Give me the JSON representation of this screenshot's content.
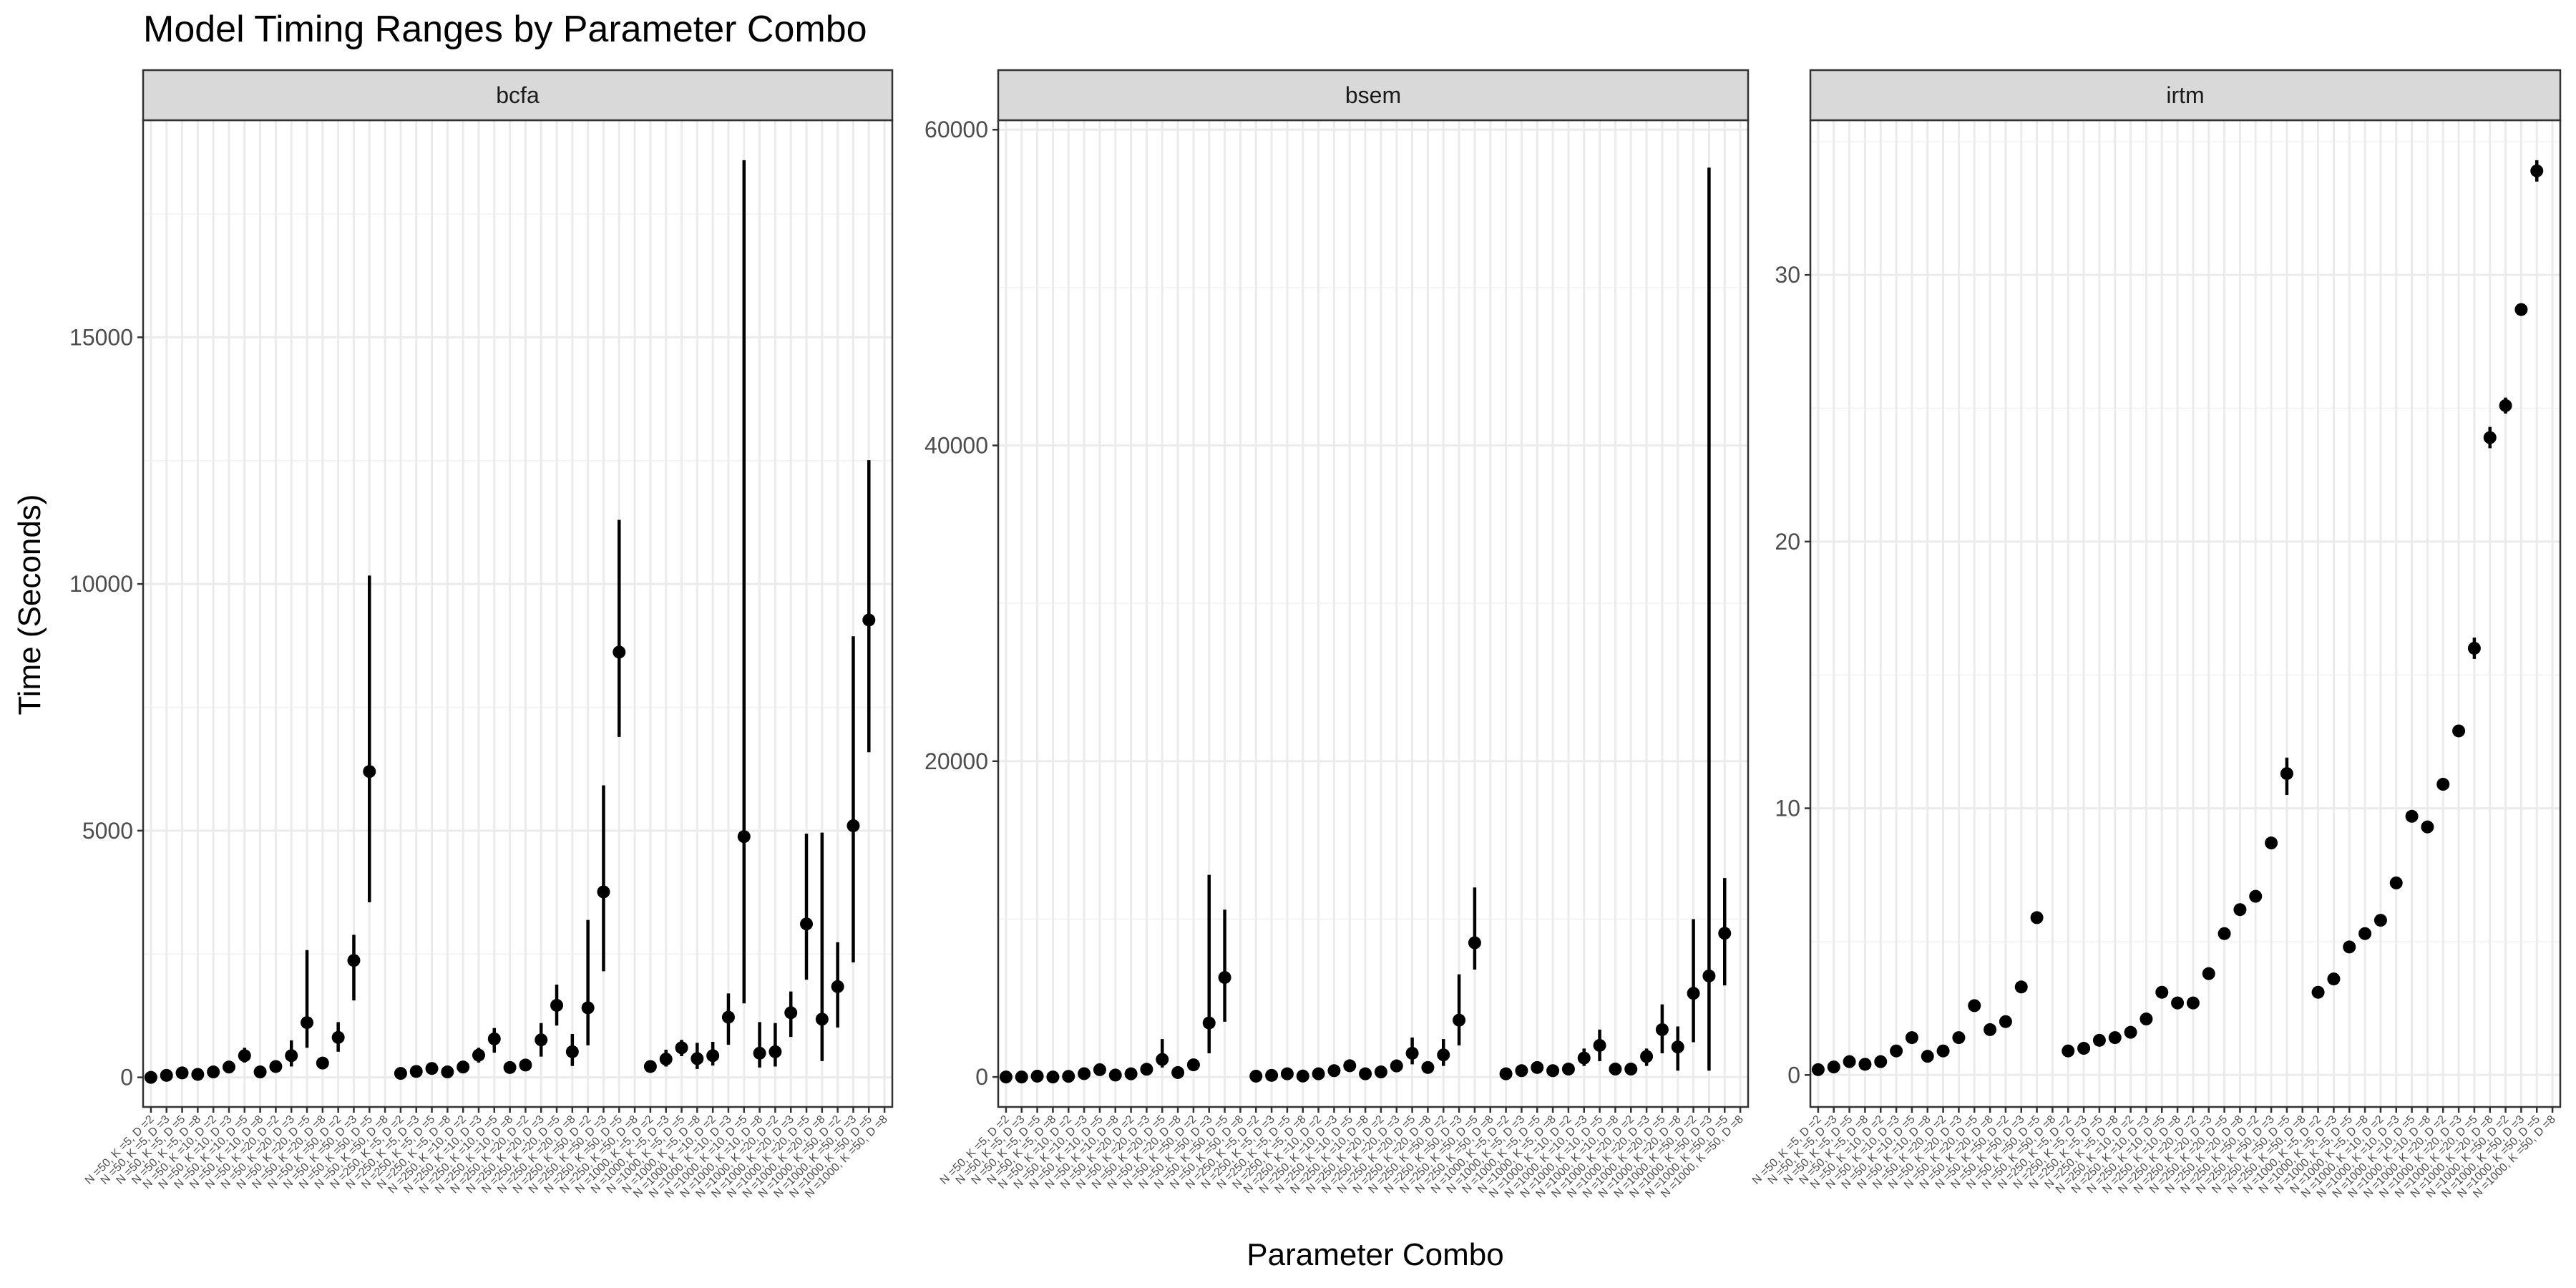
{
  "chart_data": {
    "type": "scatter",
    "title": "Model Timing Ranges by Parameter Combo",
    "xlabel": "Parameter Combo",
    "ylabel": "Time (Seconds)",
    "grid": true,
    "legend": "none",
    "categories": [
      "N =50, K =5, D =2",
      "N =50, K =5, D =3",
      "N =50, K =5, D =5",
      "N =50, K =5, D =8",
      "N =50, K =10, D =2",
      "N =50, K =10, D =3",
      "N =50, K =10, D =5",
      "N =50, K =10, D =8",
      "N =50, K =20, D =2",
      "N =50, K =20, D =3",
      "N =50, K =20, D =5",
      "N =50, K =20, D =8",
      "N =50, K =50, D =2",
      "N =50, K =50, D =3",
      "N =50, K =50, D =5",
      "N =50, K =50, D =8",
      "N =250, K =5, D =2",
      "N =250, K =5, D =3",
      "N =250, K =5, D =5",
      "N =250, K =5, D =8",
      "N =250, K =10, D =2",
      "N =250, K =10, D =3",
      "N =250, K =10, D =5",
      "N =250, K =10, D =8",
      "N =250, K =20, D =2",
      "N =250, K =20, D =3",
      "N =250, K =20, D =5",
      "N =250, K =20, D =8",
      "N =250, K =50, D =2",
      "N =250, K =50, D =3",
      "N =250, K =50, D =5",
      "N =250, K =50, D =8",
      "N =1000, K =5, D =2",
      "N =1000, K =5, D =3",
      "N =1000, K =5, D =5",
      "N =1000, K =5, D =8",
      "N =1000, K =10, D =2",
      "N =1000, K =10, D =3",
      "N =1000, K =10, D =5",
      "N =1000, K =10, D =8",
      "N =1000, K =20, D =2",
      "N =1000, K =20, D =3",
      "N =1000, K =20, D =5",
      "N =1000, K =20, D =8",
      "N =1000, K =50, D =2",
      "N =1000, K =50, D =3",
      "N =1000, K =50, D =5",
      "N =1000, K =50, D =8"
    ],
    "panels": [
      {
        "name": "bcfa",
        "ylim": [
          -600,
          19400
        ],
        "yticks": [
          0,
          5000,
          10000,
          15000
        ],
        "ytick_labels": [
          "0",
          "5000",
          "10000",
          "15000"
        ],
        "y": [
          0,
          40,
          90,
          60,
          110,
          210,
          440,
          110,
          220,
          440,
          1110,
          290,
          810,
          2370,
          6200,
          null,
          80,
          120,
          180,
          110,
          210,
          450,
          780,
          200,
          250,
          760,
          1460,
          520,
          1410,
          3760,
          8620,
          null,
          220,
          370,
          600,
          380,
          440,
          1220,
          4880,
          490,
          520,
          1310,
          3110,
          1180,
          1840,
          5100,
          9270,
          null
        ],
        "ymin": [
          0,
          20,
          60,
          40,
          80,
          150,
          300,
          70,
          130,
          220,
          600,
          200,
          520,
          1560,
          3550,
          null,
          50,
          70,
          120,
          70,
          140,
          300,
          500,
          140,
          160,
          420,
          1050,
          230,
          650,
          2150,
          6900,
          null,
          130,
          220,
          430,
          170,
          240,
          660,
          1500,
          200,
          220,
          820,
          1980,
          330,
          1010,
          2330,
          6590,
          null
        ],
        "ymax": [
          0,
          70,
          150,
          100,
          160,
          300,
          600,
          150,
          280,
          750,
          2580,
          380,
          1120,
          2890,
          10170,
          null,
          110,
          170,
          240,
          170,
          300,
          600,
          1000,
          260,
          360,
          1100,
          1880,
          880,
          3190,
          5920,
          11300,
          null,
          300,
          560,
          760,
          700,
          720,
          1700,
          18590,
          1120,
          1100,
          1740,
          4940,
          4960,
          2740,
          8940,
          12510,
          null
        ]
      },
      {
        "name": "bsem",
        "ylim": [
          -1900,
          60600
        ],
        "yticks": [
          0,
          20000,
          40000,
          60000
        ],
        "ytick_labels": [
          "0",
          "20000",
          "40000",
          "60000"
        ],
        "y": [
          0,
          0,
          50,
          0,
          40,
          210,
          460,
          120,
          200,
          490,
          1110,
          280,
          770,
          3420,
          6300,
          null,
          50,
          100,
          200,
          60,
          200,
          400,
          710,
          200,
          320,
          700,
          1500,
          600,
          1400,
          3600,
          8500,
          null,
          200,
          400,
          600,
          400,
          500,
          1200,
          2000,
          500,
          500,
          1300,
          3000,
          1900,
          5300,
          6400,
          9100,
          null
        ],
        "ymin": [
          0,
          0,
          30,
          0,
          20,
          120,
          300,
          70,
          120,
          300,
          600,
          180,
          500,
          1500,
          3500,
          null,
          20,
          50,
          120,
          30,
          120,
          250,
          400,
          100,
          180,
          400,
          800,
          300,
          700,
          2000,
          6800,
          null,
          120,
          250,
          400,
          200,
          250,
          700,
          1000,
          200,
          200,
          700,
          1500,
          400,
          2200,
          400,
          5800,
          null
        ],
        "ymax": [
          0,
          0,
          80,
          0,
          80,
          300,
          700,
          200,
          300,
          800,
          2400,
          400,
          1100,
          12800,
          10600,
          null,
          100,
          200,
          300,
          100,
          300,
          600,
          1000,
          300,
          500,
          1100,
          2500,
          900,
          2400,
          6500,
          12000,
          null,
          300,
          600,
          800,
          700,
          800,
          1800,
          3000,
          900,
          800,
          1800,
          4600,
          3200,
          10000,
          57600,
          12600,
          null
        ]
      },
      {
        "name": "irtm",
        "ylim": [
          -1.2,
          35.8
        ],
        "yticks": [
          0,
          10,
          20,
          30
        ],
        "ytick_labels": [
          "0",
          "10",
          "20",
          "30"
        ],
        "y": [
          0.2,
          0.3,
          0.5,
          0.4,
          0.5,
          0.9,
          1.4,
          0.7,
          0.9,
          1.4,
          2.6,
          1.7,
          2.0,
          3.3,
          5.9,
          null,
          0.9,
          1.0,
          1.3,
          1.4,
          1.6,
          2.1,
          3.1,
          2.7,
          2.7,
          3.8,
          5.3,
          6.2,
          6.7,
          8.7,
          11.3,
          null,
          3.1,
          3.6,
          4.8,
          5.3,
          5.8,
          7.2,
          9.7,
          9.3,
          10.9,
          12.9,
          16.0,
          23.9,
          25.1,
          28.7,
          33.9,
          null
        ],
        "ymin": [
          0.2,
          0.3,
          0.5,
          0.4,
          0.5,
          0.9,
          1.4,
          0.7,
          0.9,
          1.4,
          2.6,
          1.7,
          2.0,
          3.3,
          5.9,
          null,
          0.9,
          1.0,
          1.3,
          1.4,
          1.6,
          2.1,
          3.1,
          2.7,
          2.7,
          3.8,
          5.3,
          6.2,
          6.7,
          8.7,
          10.5,
          null,
          3.1,
          3.6,
          4.8,
          5.3,
          5.8,
          7.2,
          9.7,
          9.3,
          10.9,
          12.9,
          15.6,
          23.5,
          24.8,
          28.5,
          33.5,
          null
        ],
        "ymax": [
          0.2,
          0.3,
          0.5,
          0.4,
          0.5,
          0.9,
          1.4,
          0.7,
          0.9,
          1.4,
          2.6,
          1.7,
          2.0,
          3.3,
          5.9,
          null,
          0.9,
          1.0,
          1.3,
          1.4,
          1.6,
          2.1,
          3.1,
          2.7,
          2.7,
          3.8,
          5.3,
          6.2,
          6.7,
          8.7,
          11.9,
          null,
          3.1,
          3.6,
          4.8,
          5.3,
          5.8,
          7.2,
          9.7,
          9.3,
          10.9,
          12.9,
          16.4,
          24.3,
          25.4,
          28.9,
          34.3,
          null
        ]
      }
    ]
  }
}
